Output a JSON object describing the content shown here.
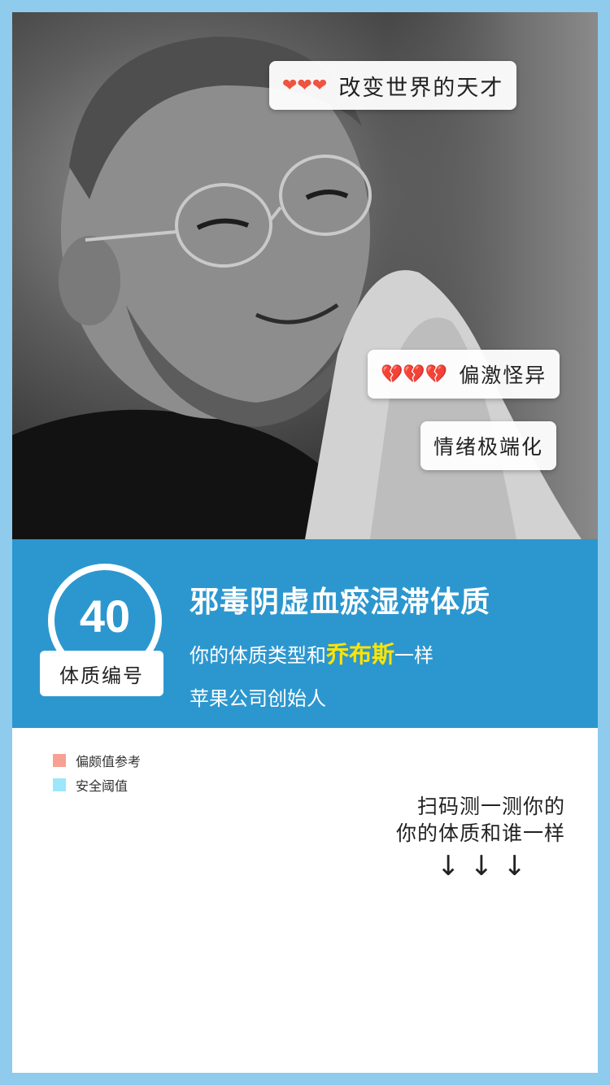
{
  "photo": {
    "tags": [
      {
        "hearts": "❤❤❤",
        "label": "改变世界的天才"
      },
      {
        "hearts": "💔💔💔",
        "label": "偏激怪异"
      },
      {
        "label": "情绪极端化"
      }
    ]
  },
  "result": {
    "badge_number": "40",
    "badge_label": "体质编号",
    "title": "邪毒阴虚血瘀湿滞体质",
    "line2_prefix": "你的体质类型和",
    "line2_highlight": "乔布斯",
    "line2_suffix": "一样",
    "line3": "苹果公司创始人",
    "highlight_color": "#ffe500"
  },
  "legend": [
    {
      "label": "偏颇值参考",
      "color": "#f6a193"
    },
    {
      "label": "安全阈值",
      "color": "#9de6fb"
    }
  ],
  "cta": {
    "line1": "扫码测一测你的",
    "line2": "你的体质和谁一样",
    "arrow": "↓"
  },
  "colors": {
    "frame": "#8ecbed",
    "banner": "#2c97cf",
    "heart": "#f0533f"
  }
}
